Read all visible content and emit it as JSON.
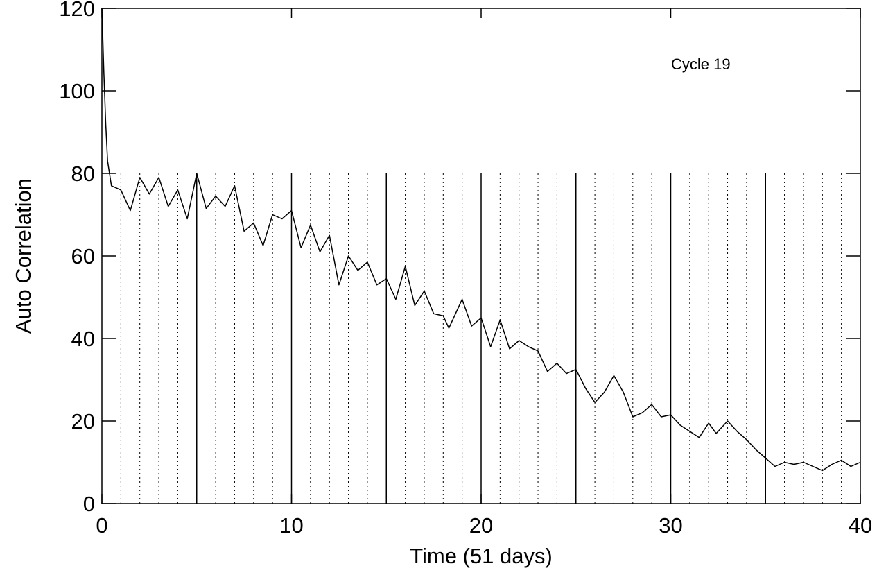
{
  "chart_data": {
    "type": "line",
    "x_label": "Time (51 days)",
    "y_label": "Auto Correlation",
    "annotation": "Cycle 19",
    "xlim": [
      0,
      40
    ],
    "ylim": [
      0,
      120
    ],
    "xticks": [
      0,
      10,
      20,
      30,
      40
    ],
    "yticks": [
      0,
      20,
      40,
      60,
      80,
      100,
      120
    ],
    "color": "#000000",
    "reference_lines": {
      "top": 80,
      "solid": [
        5,
        10,
        15,
        20,
        25,
        30,
        35
      ],
      "dotted": [
        1,
        2,
        3,
        4,
        6,
        7,
        8,
        9,
        11,
        12,
        13,
        14,
        16,
        17,
        18,
        19,
        21,
        22,
        23,
        24,
        26,
        27,
        28,
        29,
        31,
        32,
        33,
        34,
        36,
        37,
        38,
        39
      ]
    },
    "x": [
      0,
      0.1,
      0.2,
      0.3,
      0.5,
      1,
      1.5,
      2,
      2.5,
      3,
      3.5,
      4,
      4.5,
      5,
      5.5,
      6,
      6.5,
      7,
      7.5,
      8,
      8.5,
      9,
      9.5,
      10,
      10.5,
      11,
      11.5,
      12,
      12.5,
      13,
      13.5,
      14,
      14.5,
      15,
      15.5,
      16,
      16.5,
      17,
      17.5,
      18,
      18.3,
      19,
      19.5,
      20,
      20.5,
      21,
      21.5,
      22,
      22.5,
      23,
      23.5,
      24,
      24.5,
      25,
      25.5,
      26,
      26.5,
      27,
      27.5,
      28,
      28.5,
      29,
      29.5,
      30,
      30.5,
      31,
      31.5,
      32,
      32.4,
      33,
      33.5,
      34,
      34.5,
      35,
      35.5,
      36,
      36.5,
      37,
      37.5,
      38,
      38.5,
      39,
      39.5,
      40
    ],
    "values": [
      120,
      105,
      92,
      83,
      77,
      76,
      71,
      79,
      75,
      79,
      72,
      76,
      69,
      80,
      71.5,
      74.5,
      72,
      77,
      66,
      68,
      62.5,
      70,
      69,
      71,
      62,
      67.5,
      61,
      65,
      53,
      60,
      56.5,
      58.5,
      53,
      54.5,
      49.5,
      57.5,
      48,
      51.5,
      46,
      45.5,
      42.5,
      49.5,
      43,
      45,
      38,
      44.5,
      37.5,
      39.5,
      38,
      37,
      32,
      34,
      31.5,
      32.5,
      28,
      24.5,
      27,
      31,
      27,
      21,
      22,
      24,
      21,
      21.5,
      19,
      17.5,
      16,
      19.5,
      17,
      20,
      17.5,
      15.5,
      13,
      11,
      9,
      10,
      9.5,
      10,
      9,
      8,
      9.5,
      10.5,
      9,
      10
    ]
  }
}
